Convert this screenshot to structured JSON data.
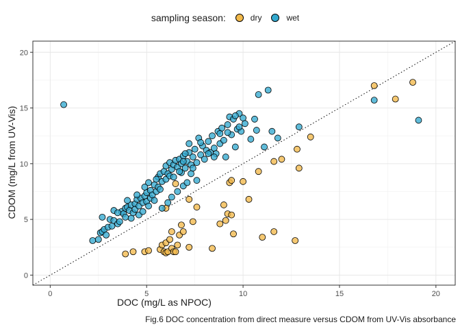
{
  "chart_data": {
    "type": "scatter",
    "title": "",
    "caption": "Fig.6 DOC concentration from direct measure versus CDOM from UV-Vis absorbance",
    "xlabel": "DOC (mg/L as NPOC)",
    "ylabel": "CDOM (mg/L from UV-Vis)",
    "xlim": [
      -0.9,
      21.0
    ],
    "ylim": [
      -0.9,
      21.0
    ],
    "xticks": [
      0,
      5,
      10,
      15,
      20
    ],
    "yticks": [
      0,
      5,
      10,
      15,
      20
    ],
    "grid": true,
    "legend": {
      "title": "sampling season:",
      "placement": "top"
    },
    "reference_line": {
      "type": "identity",
      "style": "dotted",
      "slope": 1,
      "intercept": 0
    },
    "colors": {
      "dry": "#f2b94a",
      "wet": "#33a9cf"
    },
    "series": [
      {
        "name": "dry",
        "points": [
          [
            3.9,
            1.9
          ],
          [
            4.3,
            2.1
          ],
          [
            4.9,
            2.1
          ],
          [
            5.1,
            2.2
          ],
          [
            5.7,
            2.3
          ],
          [
            5.8,
            2.7
          ],
          [
            5.9,
            2.1
          ],
          [
            6.0,
            2.9
          ],
          [
            6.0,
            2.0
          ],
          [
            6.1,
            2.1
          ],
          [
            6.2,
            3.2
          ],
          [
            6.3,
            2.4
          ],
          [
            6.3,
            3.9
          ],
          [
            6.4,
            2.1
          ],
          [
            6.5,
            2.1
          ],
          [
            6.6,
            2.7
          ],
          [
            6.7,
            3.6
          ],
          [
            6.8,
            4.5
          ],
          [
            6.9,
            3.9
          ],
          [
            7.2,
            2.5
          ],
          [
            7.4,
            4.8
          ],
          [
            7.6,
            6.1
          ],
          [
            7.2,
            6.8
          ],
          [
            6.0,
            6.0
          ],
          [
            6.5,
            8.2
          ],
          [
            8.4,
            2.4
          ],
          [
            8.8,
            4.6
          ],
          [
            9.0,
            6.3
          ],
          [
            9.1,
            4.9
          ],
          [
            9.2,
            5.5
          ],
          [
            9.4,
            5.4
          ],
          [
            9.3,
            8.3
          ],
          [
            9.4,
            8.5
          ],
          [
            9.5,
            3.7
          ],
          [
            10.0,
            8.4
          ],
          [
            10.3,
            6.8
          ],
          [
            10.8,
            9.3
          ],
          [
            11.0,
            3.4
          ],
          [
            11.6,
            3.9
          ],
          [
            11.6,
            10.2
          ],
          [
            12.0,
            10.4
          ],
          [
            12.7,
            3.1
          ],
          [
            12.8,
            11.3
          ],
          [
            12.9,
            9.6
          ],
          [
            13.5,
            12.4
          ],
          [
            16.8,
            17.0
          ],
          [
            17.9,
            15.8
          ],
          [
            18.8,
            17.3
          ]
        ]
      },
      {
        "name": "wet",
        "points": [
          [
            0.7,
            15.3
          ],
          [
            2.2,
            3.1
          ],
          [
            2.5,
            3.2
          ],
          [
            2.6,
            3.8
          ],
          [
            2.7,
            3.9
          ],
          [
            2.8,
            4.1
          ],
          [
            2.9,
            3.6
          ],
          [
            2.7,
            5.2
          ],
          [
            3.0,
            4.3
          ],
          [
            3.1,
            5.0
          ],
          [
            3.2,
            4.4
          ],
          [
            3.3,
            4.9
          ],
          [
            3.5,
            4.6
          ],
          [
            3.6,
            4.8
          ],
          [
            3.7,
            5.7
          ],
          [
            3.8,
            5.5
          ],
          [
            3.9,
            6.0
          ],
          [
            3.9,
            5.2
          ],
          [
            4.0,
            6.1
          ],
          [
            4.1,
            5.8
          ],
          [
            4.2,
            5.1
          ],
          [
            4.2,
            6.3
          ],
          [
            4.3,
            5.6
          ],
          [
            4.4,
            6.4
          ],
          [
            4.4,
            5.9
          ],
          [
            4.5,
            6.8
          ],
          [
            4.6,
            6.2
          ],
          [
            4.6,
            5.4
          ],
          [
            4.7,
            6.9
          ],
          [
            4.8,
            6.5
          ],
          [
            4.8,
            5.7
          ],
          [
            4.9,
            7.1
          ],
          [
            5.0,
            6.6
          ],
          [
            5.0,
            7.4
          ],
          [
            5.1,
            6.2
          ],
          [
            5.2,
            6.9
          ],
          [
            5.2,
            7.6
          ],
          [
            5.3,
            7.2
          ],
          [
            5.4,
            6.7
          ],
          [
            5.4,
            8.1
          ],
          [
            5.5,
            7.5
          ],
          [
            5.6,
            7.9
          ],
          [
            5.6,
            8.8
          ],
          [
            5.7,
            7.7
          ],
          [
            5.7,
            9.1
          ],
          [
            5.8,
            8.4
          ],
          [
            5.9,
            9.3
          ],
          [
            6.0,
            8.6
          ],
          [
            6.0,
            9.8
          ],
          [
            6.1,
            9.1
          ],
          [
            6.2,
            8.9
          ],
          [
            6.2,
            10.1
          ],
          [
            6.3,
            9.5
          ],
          [
            6.4,
            9.9
          ],
          [
            6.4,
            8.8
          ],
          [
            6.5,
            10.3
          ],
          [
            6.6,
            9.7
          ],
          [
            6.7,
            10.4
          ],
          [
            6.8,
            9.2
          ],
          [
            6.8,
            10.0
          ],
          [
            6.9,
            10.7
          ],
          [
            7.0,
            9.6
          ],
          [
            7.1,
            10.2
          ],
          [
            7.2,
            11.0
          ],
          [
            7.3,
            9.9
          ],
          [
            7.4,
            10.6
          ],
          [
            7.5,
            11.3
          ],
          [
            7.6,
            10.1
          ],
          [
            7.7,
            12.3
          ],
          [
            7.8,
            10.8
          ],
          [
            7.9,
            11.6
          ],
          [
            8.0,
            10.4
          ],
          [
            8.1,
            11.2
          ],
          [
            8.2,
            12.0
          ],
          [
            8.3,
            11.0
          ],
          [
            8.4,
            12.5
          ],
          [
            8.5,
            11.4
          ],
          [
            8.6,
            10.9
          ],
          [
            8.7,
            12.9
          ],
          [
            8.8,
            11.8
          ],
          [
            8.9,
            13.2
          ],
          [
            9.0,
            12.1
          ],
          [
            9.1,
            10.6
          ],
          [
            9.2,
            13.5
          ],
          [
            9.3,
            14.2
          ],
          [
            9.4,
            12.6
          ],
          [
            9.5,
            14.0
          ],
          [
            9.6,
            11.5
          ],
          [
            9.7,
            13.1
          ],
          [
            9.8,
            14.5
          ],
          [
            9.9,
            12.9
          ],
          [
            10.0,
            14.1
          ],
          [
            10.1,
            13.6
          ],
          [
            10.4,
            12.2
          ],
          [
            10.6,
            14.0
          ],
          [
            10.7,
            13.0
          ],
          [
            10.8,
            16.2
          ],
          [
            11.1,
            11.5
          ],
          [
            11.3,
            16.6
          ],
          [
            11.5,
            12.9
          ],
          [
            11.8,
            12.3
          ],
          [
            12.9,
            13.3
          ],
          [
            16.8,
            15.7
          ],
          [
            19.1,
            13.9
          ],
          [
            3.3,
            5.8
          ],
          [
            3.5,
            5.6
          ],
          [
            4.0,
            6.7
          ],
          [
            5.8,
            6.0
          ],
          [
            6.1,
            6.5
          ],
          [
            6.3,
            7.0
          ],
          [
            6.6,
            7.5
          ],
          [
            6.9,
            8.0
          ],
          [
            7.1,
            8.3
          ],
          [
            7.3,
            9.1
          ],
          [
            7.6,
            8.5
          ],
          [
            4.5,
            7.2
          ],
          [
            4.9,
            7.9
          ],
          [
            5.1,
            8.3
          ],
          [
            5.5,
            8.6
          ],
          [
            7.2,
            11.8
          ],
          [
            7.8,
            11.9
          ],
          [
            8.2,
            10.9
          ],
          [
            8.8,
            12.7
          ],
          [
            9.6,
            14.3
          ],
          [
            9.2,
            12.8
          ],
          [
            9.8,
            13.3
          ],
          [
            6.9,
            10.2
          ],
          [
            7.4,
            9.6
          ],
          [
            8.5,
            10.6
          ],
          [
            6.7,
            9.3
          ],
          [
            7.0,
            10.9
          ]
        ]
      }
    ]
  }
}
